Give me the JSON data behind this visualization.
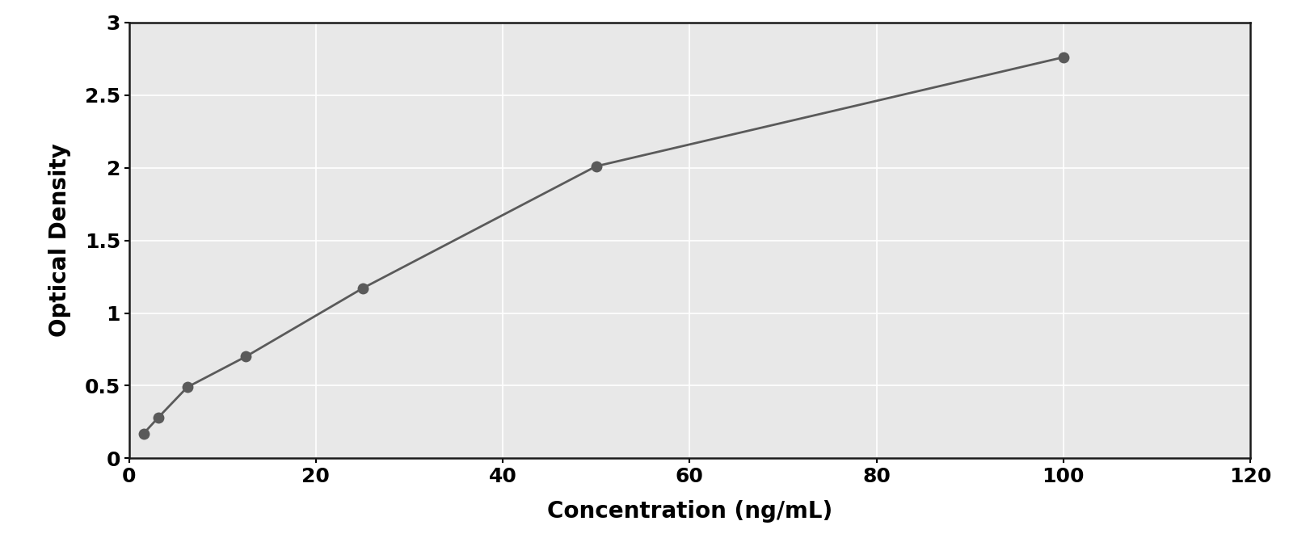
{
  "x_data": [
    1.56,
    3.125,
    6.25,
    12.5,
    25,
    50,
    100
  ],
  "y_data": [
    0.17,
    0.28,
    0.49,
    0.7,
    1.17,
    2.01,
    2.76
  ],
  "xlabel": "Concentration (ng/mL)",
  "ylabel": "Optical Density",
  "xlim": [
    0,
    120
  ],
  "ylim": [
    0,
    3
  ],
  "xticks": [
    0,
    20,
    40,
    60,
    80,
    100,
    120
  ],
  "yticks": [
    0,
    0.5,
    1.0,
    1.5,
    2.0,
    2.5,
    3.0
  ],
  "data_color": "#5a5a5a",
  "line_color": "#5a5a5a",
  "background_color": "#ffffff",
  "plot_bg_color": "#e8e8e8",
  "grid_color": "#ffffff",
  "marker_size": 10,
  "line_width": 2.0,
  "xlabel_fontsize": 20,
  "ylabel_fontsize": 20,
  "tick_fontsize": 18,
  "curve_x_end": 110
}
